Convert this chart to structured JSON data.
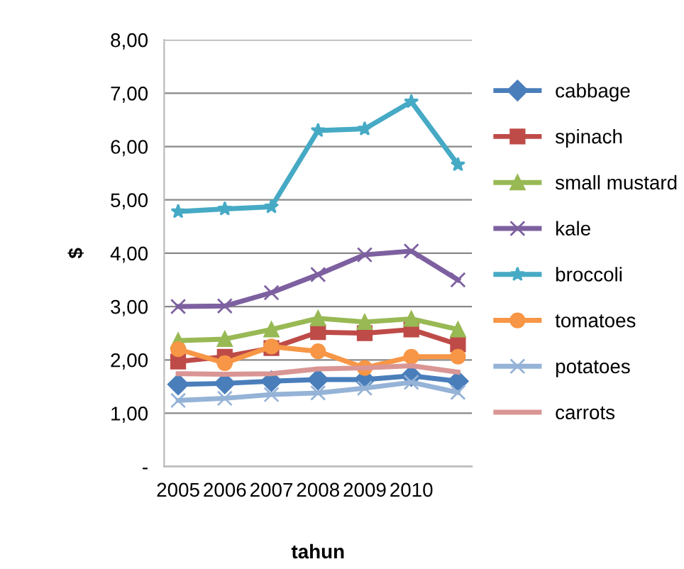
{
  "chart_data": {
    "type": "line",
    "xlabel": "tahun",
    "ylabel": "$",
    "categories": [
      "2005",
      "2006",
      "2007",
      "2008",
      "2009",
      "2010",
      null
    ],
    "ylim": [
      0,
      8
    ],
    "yticks": [
      {
        "value": 0,
        "label": "-"
      },
      {
        "value": 1,
        "label": "1,00"
      },
      {
        "value": 2,
        "label": "2,00"
      },
      {
        "value": 3,
        "label": "3,00"
      },
      {
        "value": 4,
        "label": "4,00"
      },
      {
        "value": 5,
        "label": "5,00"
      },
      {
        "value": 6,
        "label": "6,00"
      },
      {
        "value": 7,
        "label": "7,00"
      },
      {
        "value": 8,
        "label": "8,00"
      }
    ],
    "grid": "y",
    "legend": "right",
    "series": [
      {
        "name": "cabbage",
        "color": "#4a7ebb",
        "marker": "diamond",
        "values": [
          1.54,
          1.56,
          1.6,
          1.63,
          1.63,
          1.7,
          1.6
        ]
      },
      {
        "name": "spinach",
        "color": "#be4b48",
        "marker": "square",
        "values": [
          1.97,
          2.06,
          2.22,
          2.52,
          2.5,
          2.57,
          2.29
        ]
      },
      {
        "name": "small mustard",
        "color": "#98b954",
        "marker": "triangle",
        "values": [
          2.36,
          2.39,
          2.57,
          2.78,
          2.71,
          2.77,
          2.57
        ]
      },
      {
        "name": "kale",
        "color": "#7d60a0",
        "marker": "cross",
        "values": [
          3.0,
          3.01,
          3.26,
          3.6,
          3.97,
          4.04,
          3.5
        ]
      },
      {
        "name": "broccoli",
        "color": "#46aac5",
        "marker": "star",
        "values": [
          4.78,
          4.83,
          4.87,
          6.3,
          6.33,
          6.84,
          5.66
        ]
      },
      {
        "name": "tomatoes",
        "color": "#f79646",
        "marker": "circle",
        "values": [
          2.2,
          1.94,
          2.25,
          2.16,
          1.85,
          2.06,
          2.06
        ]
      },
      {
        "name": "potatoes",
        "color": "#95b3d7",
        "marker": "cross",
        "values": [
          1.24,
          1.28,
          1.35,
          1.38,
          1.47,
          1.58,
          1.39
        ]
      },
      {
        "name": "carrots",
        "color": "#d99694",
        "marker": "none",
        "values": [
          1.74,
          1.73,
          1.74,
          1.83,
          1.85,
          1.89,
          1.77
        ]
      }
    ]
  }
}
